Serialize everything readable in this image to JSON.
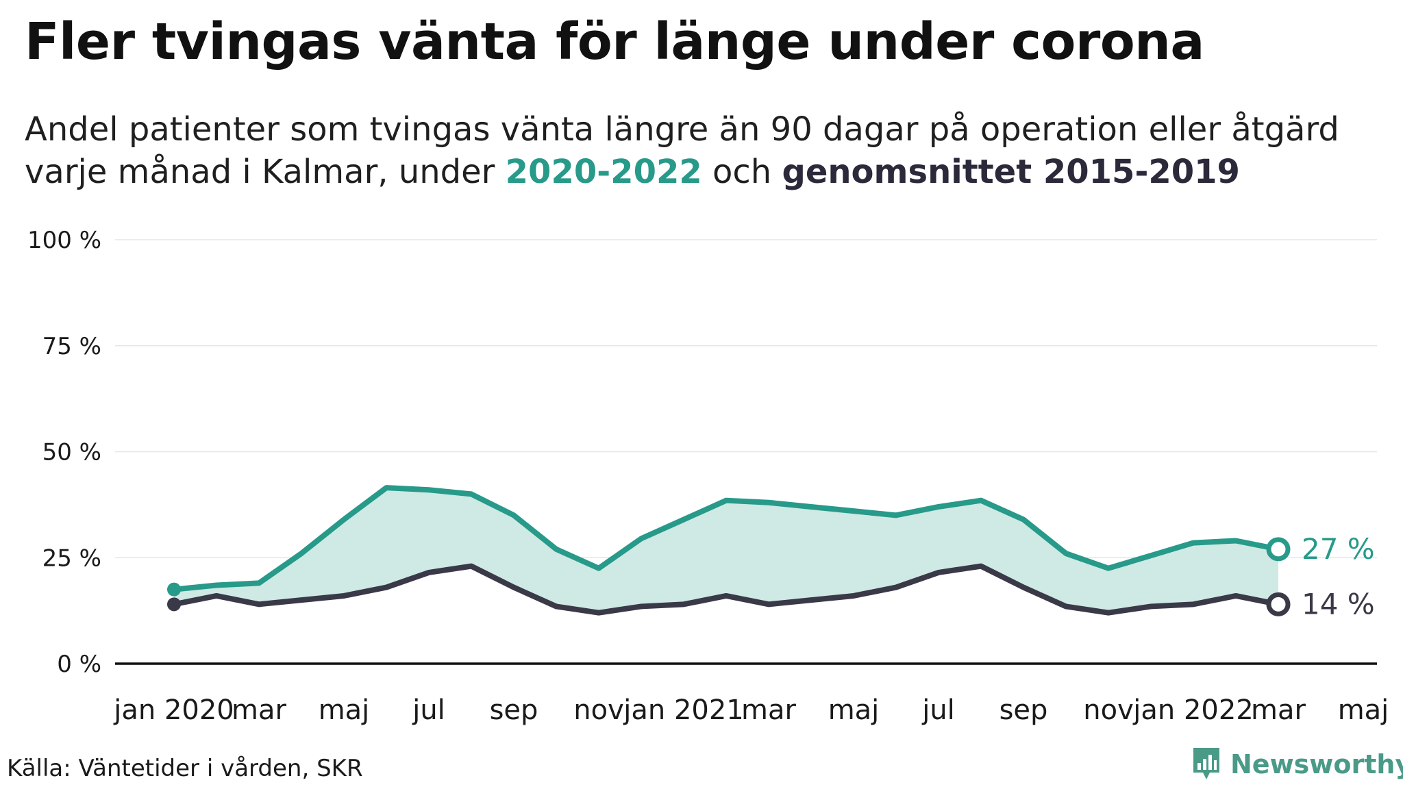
{
  "title": "Fler tvingas vänta för länge under corona",
  "subtitle": {
    "line1": "Andel patienter som tvingas vänta längre än 90 dagar på operation eller åtgärd",
    "line2_prefix": "varje månad i Kalmar, under ",
    "highlight_a": "2020-2022",
    "middle": " och ",
    "highlight_b": "genomsnittet 2015-2019"
  },
  "source": "Källa: Väntetider i vården, SKR",
  "brand": "Newsworthy",
  "colors": {
    "current": "#279a8a",
    "average": "#3a3948",
    "fill": "#cfe9e4",
    "grid": "#e6e6e6",
    "axis": "#111111"
  },
  "chart_data": {
    "type": "area",
    "x": [
      "2020-01",
      "2020-02",
      "2020-03",
      "2020-04",
      "2020-05",
      "2020-06",
      "2020-07",
      "2020-08",
      "2020-09",
      "2020-10",
      "2020-11",
      "2020-12",
      "2021-01",
      "2021-02",
      "2021-03",
      "2021-04",
      "2021-05",
      "2021-06",
      "2021-07",
      "2021-08",
      "2021-09",
      "2021-10",
      "2021-11",
      "2021-12",
      "2022-01",
      "2022-02",
      "2022-03"
    ],
    "series": [
      {
        "key": "current",
        "values": [
          17.5,
          18.5,
          19,
          26,
          34,
          41.5,
          41,
          40,
          35,
          27,
          22.5,
          29.5,
          34,
          38.5,
          38,
          37,
          36,
          35,
          37,
          38.5,
          34,
          26,
          22.5,
          25.5,
          28.5,
          29,
          27
        ]
      },
      {
        "key": "average",
        "values": [
          14,
          16,
          14,
          15,
          16,
          18,
          21.5,
          23,
          18,
          13.5,
          12,
          13.5,
          14,
          16,
          14,
          15,
          16,
          18,
          21.5,
          23,
          18,
          13.5,
          12,
          13.5,
          14,
          16,
          14
        ]
      }
    ],
    "end_labels": [
      "27 %",
      "14 %"
    ],
    "ylim": [
      0,
      100
    ],
    "yticks": [
      "0 %",
      "25 %",
      "50 %",
      "75 %",
      "100 %"
    ],
    "xtick_labels": [
      "jan 2020",
      "mar",
      "maj",
      "jul",
      "sep",
      "nov",
      "jan 2021",
      "mar",
      "maj",
      "jul",
      "sep",
      "nov",
      "jan 2022",
      "mar",
      "maj"
    ],
    "grid": true,
    "xlabel": "",
    "ylabel": ""
  }
}
